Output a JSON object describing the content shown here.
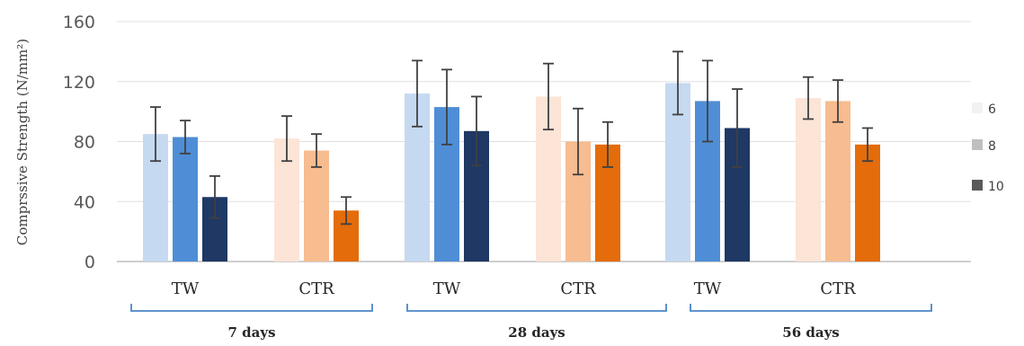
{
  "chart_data": {
    "type": "bar",
    "ylabel": "Comprssive Strength (N/mm²)",
    "ylim": [
      0,
      160
    ],
    "yticks": [
      0,
      40,
      80,
      120,
      160
    ],
    "grid": true,
    "legend_position": "right",
    "legend": [
      {
        "label": "6",
        "color": "#f2f2f2"
      },
      {
        "label": "8",
        "color": "#bfbfbf"
      },
      {
        "label": "10",
        "color": "#595959"
      }
    ],
    "groups": [
      {
        "label": "7 days",
        "categories": [
          {
            "label": "TW",
            "values": [
              85,
              83,
              43
            ],
            "errors": [
              18,
              11,
              14
            ],
            "colors": [
              "#c5d9f1",
              "#4f8ed6",
              "#1f3864"
            ]
          },
          {
            "label": "CTR",
            "values": [
              82,
              74,
              34
            ],
            "errors": [
              15,
              11,
              9
            ],
            "colors": [
              "#fce4d6",
              "#f7bc8f",
              "#e46c0a"
            ]
          }
        ]
      },
      {
        "label": "28 days",
        "categories": [
          {
            "label": "TW",
            "values": [
              112,
              103,
              87
            ],
            "errors": [
              22,
              25,
              23
            ],
            "colors": [
              "#c5d9f1",
              "#4f8ed6",
              "#1f3864"
            ]
          },
          {
            "label": "CTR",
            "values": [
              110,
              80,
              78
            ],
            "errors": [
              22,
              22,
              15
            ],
            "colors": [
              "#fce4d6",
              "#f7bc8f",
              "#e46c0a"
            ]
          }
        ]
      },
      {
        "label": "56 days",
        "categories": [
          {
            "label": "TW",
            "values": [
              119,
              107,
              89
            ],
            "errors": [
              21,
              27,
              26
            ],
            "colors": [
              "#c5d9f1",
              "#4f8ed6",
              "#1f3864"
            ]
          },
          {
            "label": "CTR",
            "values": [
              109,
              107,
              78
            ],
            "errors": [
              14,
              14,
              11
            ],
            "colors": [
              "#fce4d6",
              "#f7bc8f",
              "#e46c0a"
            ]
          }
        ]
      }
    ],
    "colors": {
      "grid": "#e0e0e0",
      "axis": "#bfbfbf",
      "error_bar": "#404040",
      "bracket": "#4a86c8"
    }
  }
}
